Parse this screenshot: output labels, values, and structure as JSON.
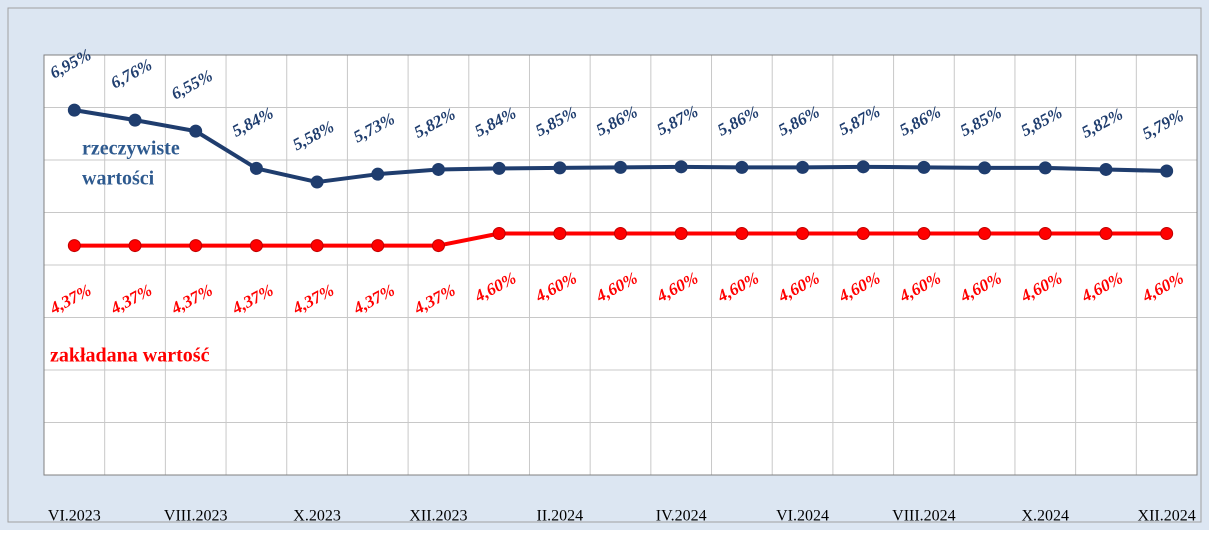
{
  "chart_data": {
    "type": "line",
    "categories": [
      "VI.2023",
      null,
      "VIII.2023",
      null,
      "X.2023",
      null,
      "XII.2023",
      null,
      "II.2024",
      null,
      "IV.2024",
      null,
      "VI.2024",
      null,
      "VIII.2024",
      null,
      "X.2024",
      null,
      "XII.2024"
    ],
    "series": [
      {
        "name": "rzeczywiste wartości",
        "color": "#1f3d6e",
        "values": [
          6.95,
          6.76,
          6.55,
          5.84,
          5.58,
          5.73,
          5.82,
          5.84,
          5.85,
          5.86,
          5.87,
          5.86,
          5.86,
          5.87,
          5.86,
          5.85,
          5.85,
          5.82,
          5.79
        ],
        "value_labels": [
          "6,95%",
          "6,76%",
          "6,55%",
          "5,84%",
          "5,58%",
          "5,73%",
          "5,82%",
          "5,84%",
          "5,85%",
          "5,86%",
          "5,87%",
          "5,86%",
          "5,86%",
          "5,87%",
          "5,86%",
          "5,85%",
          "5,85%",
          "5,82%",
          "5,79%"
        ]
      },
      {
        "name": "zakładana wartość",
        "color": "#ff0000",
        "values": [
          4.37,
          4.37,
          4.37,
          4.37,
          4.37,
          4.37,
          4.37,
          4.6,
          4.6,
          4.6,
          4.6,
          4.6,
          4.6,
          4.6,
          4.6,
          4.6,
          4.6,
          4.6,
          4.6
        ],
        "value_labels": [
          "4,37%",
          "4,37%",
          "4,37%",
          "4,37%",
          "4,37%",
          "4,37%",
          "4,37%",
          "4,60%",
          "4,60%",
          "4,60%",
          "4,60%",
          "4,60%",
          "4,60%",
          "4,60%",
          "4,60%",
          "4,60%",
          "4,60%",
          "4,60%",
          "4,60%"
        ]
      }
    ],
    "annotations": [
      {
        "lines": [
          "rzeczywiste",
          "wartości"
        ],
        "color": "#2e5a8f"
      },
      {
        "lines": [
          "zakładana wartość"
        ],
        "color": "#ff0000"
      }
    ],
    "ylim": [
      0,
      8
    ],
    "yticks": [
      0,
      1,
      2,
      3,
      4,
      5,
      6,
      7,
      8
    ],
    "grid": true
  }
}
